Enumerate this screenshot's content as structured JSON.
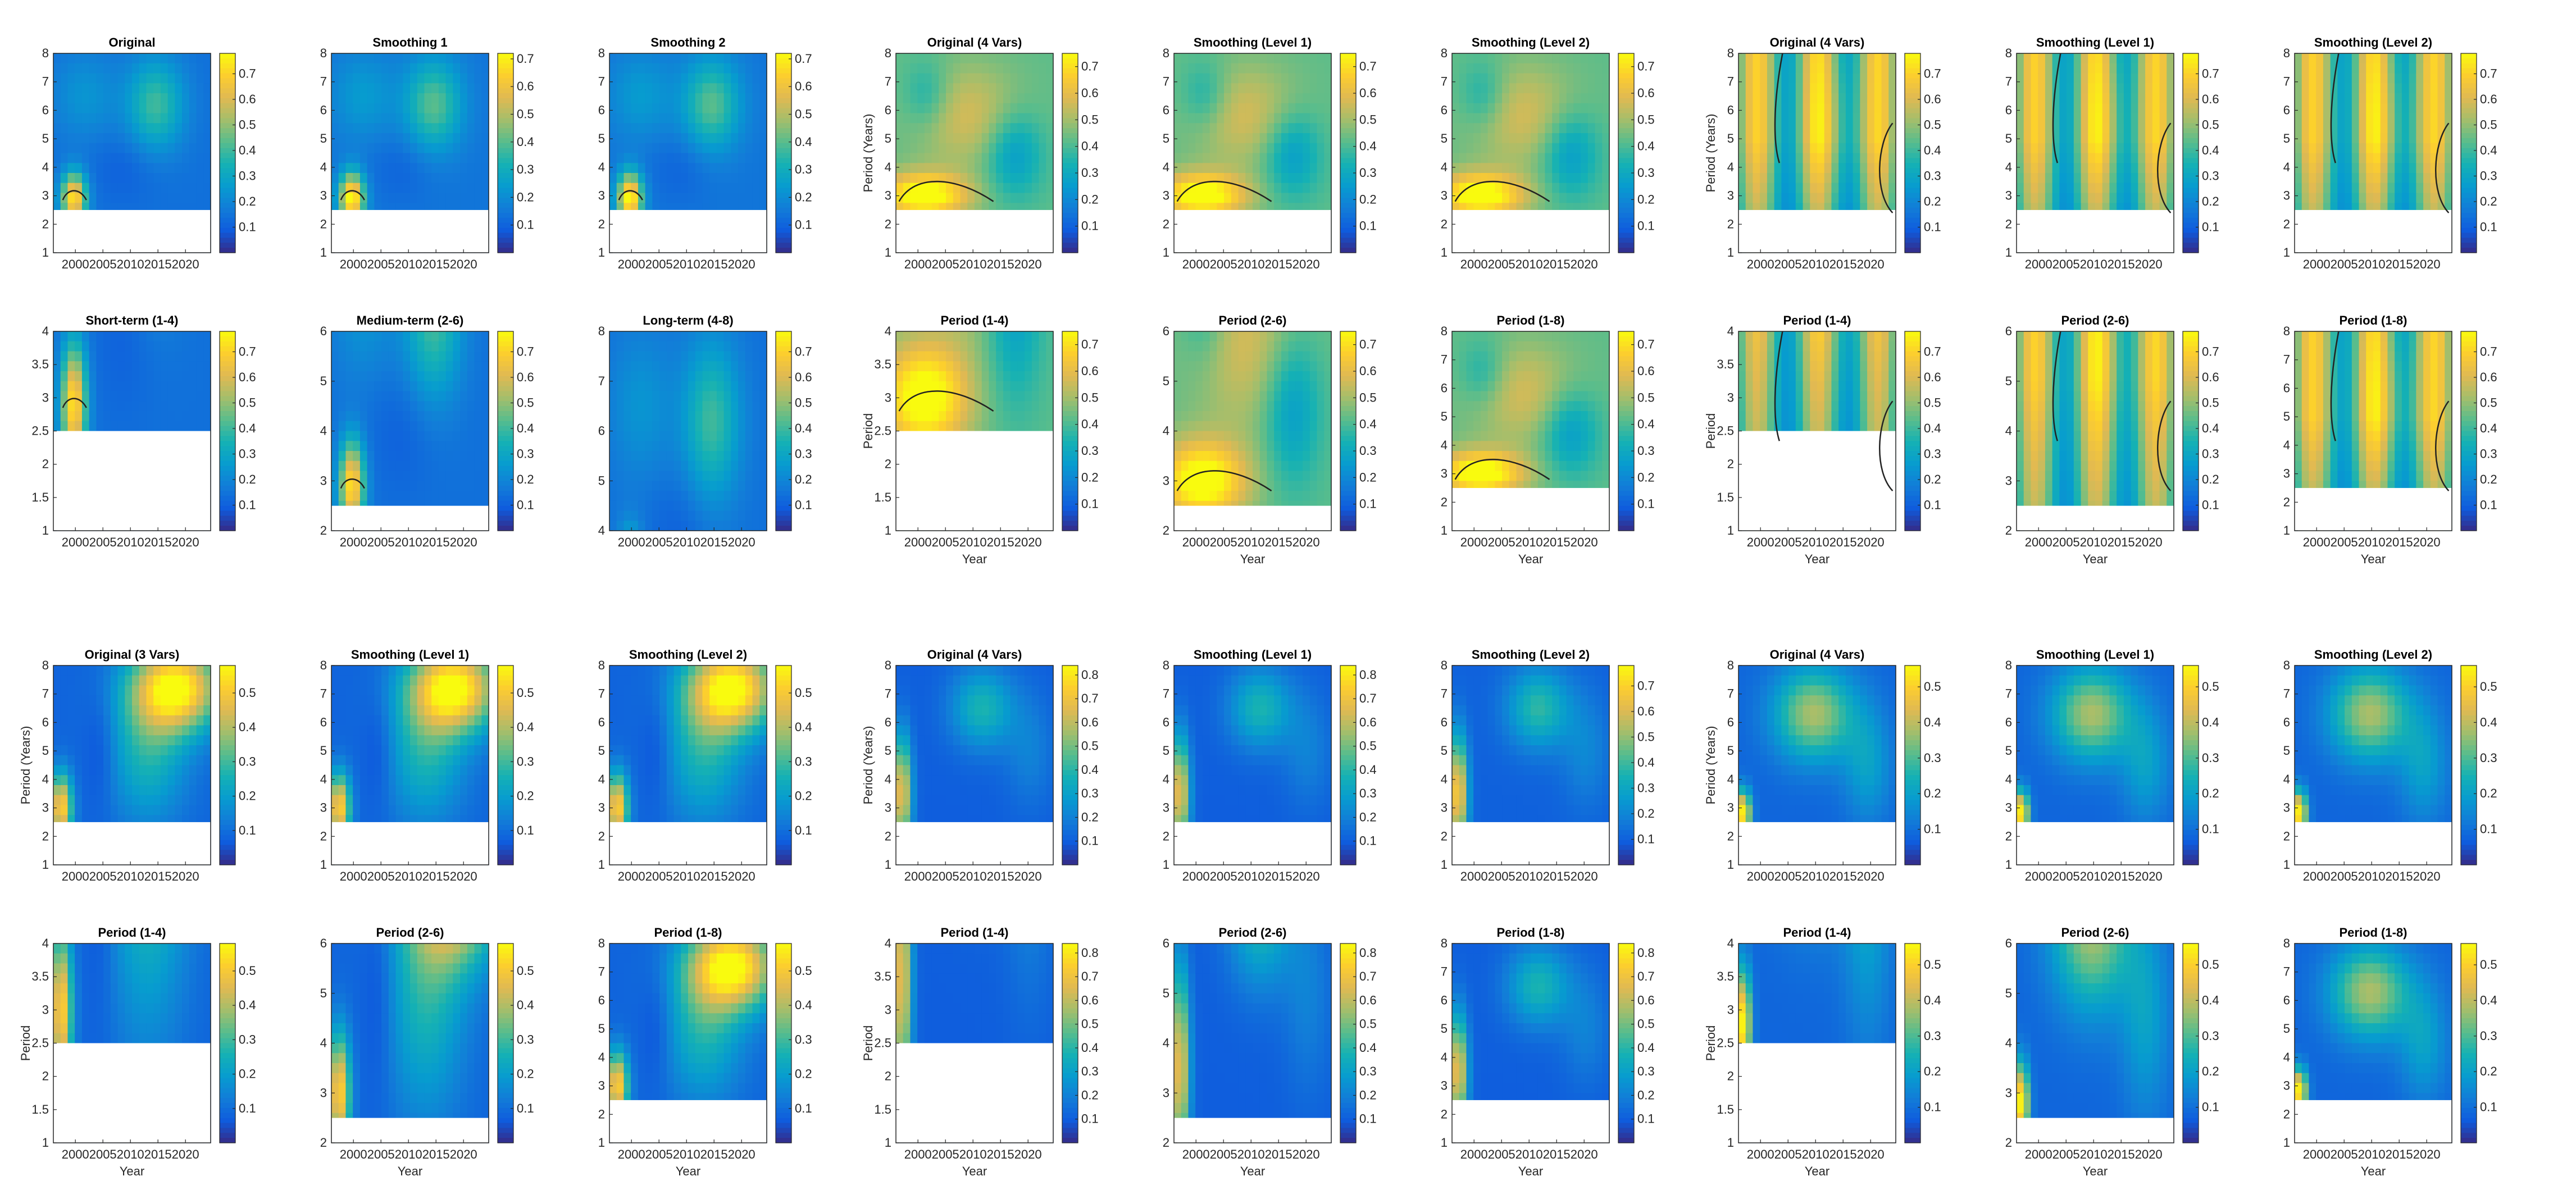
{
  "chart_data": [
    {
      "type": "heatmap",
      "title": "Original",
      "ylabel": "",
      "xlabel": "",
      "ylim": [
        1,
        8
      ],
      "yticks": [
        1,
        2,
        3,
        4,
        5,
        6,
        7,
        8
      ],
      "cbar": [
        0.1,
        0.2,
        0.3,
        0.4,
        0.5,
        0.6,
        0.7
      ],
      "vmax": 0.78,
      "xticks": [
        "2000",
        "2005",
        "2010",
        "2015",
        "2020"
      ],
      "coi": 2.5,
      "pattern": "c"
    },
    {
      "type": "heatmap",
      "title": "Smoothing 1",
      "ylabel": "",
      "xlabel": "",
      "ylim": [
        1,
        8
      ],
      "yticks": [
        1,
        2,
        3,
        4,
        5,
        6,
        7,
        8
      ],
      "cbar": [
        0.1,
        0.2,
        0.3,
        0.4,
        0.5,
        0.6,
        0.7
      ],
      "vmax": 0.72,
      "xticks": [
        "2000",
        "2005",
        "2010",
        "2015",
        "2020"
      ],
      "coi": 2.5,
      "pattern": "c"
    },
    {
      "type": "heatmap",
      "title": "Smoothing 2",
      "ylabel": "",
      "xlabel": "",
      "ylim": [
        1,
        8
      ],
      "yticks": [
        1,
        2,
        3,
        4,
        5,
        6,
        7,
        8
      ],
      "cbar": [
        0.1,
        0.2,
        0.3,
        0.4,
        0.5,
        0.6,
        0.7
      ],
      "vmax": 0.72,
      "xticks": [
        "2000",
        "2005",
        "2010",
        "2015",
        "2020"
      ],
      "coi": 2.5,
      "pattern": "c"
    },
    {
      "type": "heatmap",
      "title": "Original (4 Vars)",
      "ylabel": "Period (Years)",
      "xlabel": "",
      "ylim": [
        1,
        8
      ],
      "yticks": [
        1,
        2,
        3,
        4,
        5,
        6,
        7,
        8
      ],
      "cbar": [
        0.1,
        0.2,
        0.3,
        0.4,
        0.5,
        0.6,
        0.7
      ],
      "vmax": 0.75,
      "xticks": [
        "2000",
        "2005",
        "2010",
        "2015",
        "2020"
      ],
      "coi": 2.5,
      "pattern": "a"
    },
    {
      "type": "heatmap",
      "title": "Smoothing (Level 1)",
      "ylabel": "",
      "xlabel": "",
      "ylim": [
        1,
        8
      ],
      "yticks": [
        1,
        2,
        3,
        4,
        5,
        6,
        7,
        8
      ],
      "cbar": [
        0.1,
        0.2,
        0.3,
        0.4,
        0.5,
        0.6,
        0.7
      ],
      "vmax": 0.75,
      "xticks": [
        "2000",
        "2005",
        "2010",
        "2015",
        "2020"
      ],
      "coi": 2.5,
      "pattern": "a"
    },
    {
      "type": "heatmap",
      "title": "Smoothing (Level 2)",
      "ylabel": "",
      "xlabel": "",
      "ylim": [
        1,
        8
      ],
      "yticks": [
        1,
        2,
        3,
        4,
        5,
        6,
        7,
        8
      ],
      "cbar": [
        0.1,
        0.2,
        0.3,
        0.4,
        0.5,
        0.6,
        0.7
      ],
      "vmax": 0.75,
      "xticks": [
        "2000",
        "2005",
        "2010",
        "2015",
        "2020"
      ],
      "coi": 2.5,
      "pattern": "a"
    },
    {
      "type": "heatmap",
      "title": "Original (4 Vars)",
      "ylabel": "Period (Years)",
      "xlabel": "",
      "ylim": [
        1,
        8
      ],
      "yticks": [
        1,
        2,
        3,
        4,
        5,
        6,
        7,
        8
      ],
      "cbar": [
        0.1,
        0.2,
        0.3,
        0.4,
        0.5,
        0.6,
        0.7
      ],
      "vmax": 0.78,
      "xticks": [
        "2000",
        "2005",
        "2010",
        "2015",
        "2020"
      ],
      "coi": 2.5,
      "pattern": "b"
    },
    {
      "type": "heatmap",
      "title": "Smoothing (Level 1)",
      "ylabel": "",
      "xlabel": "",
      "ylim": [
        1,
        8
      ],
      "yticks": [
        1,
        2,
        3,
        4,
        5,
        6,
        7,
        8
      ],
      "cbar": [
        0.1,
        0.2,
        0.3,
        0.4,
        0.5,
        0.6,
        0.7
      ],
      "vmax": 0.78,
      "xticks": [
        "2000",
        "2005",
        "2010",
        "2015",
        "2020"
      ],
      "coi": 2.5,
      "pattern": "b"
    },
    {
      "type": "heatmap",
      "title": "Smoothing (Level 2)",
      "ylabel": "",
      "xlabel": "",
      "ylim": [
        1,
        8
      ],
      "yticks": [
        1,
        2,
        3,
        4,
        5,
        6,
        7,
        8
      ],
      "cbar": [
        0.1,
        0.2,
        0.3,
        0.4,
        0.5,
        0.6,
        0.7
      ],
      "vmax": 0.78,
      "xticks": [
        "2000",
        "2005",
        "2010",
        "2015",
        "2020"
      ],
      "coi": 2.5,
      "pattern": "b"
    },
    {
      "type": "heatmap",
      "title": "Short-term (1-4)",
      "ylabel": "",
      "xlabel": "",
      "ylim": [
        1,
        4
      ],
      "yticks": [
        1,
        1.5,
        2,
        2.5,
        3,
        3.5,
        4
      ],
      "cbar": [
        0.1,
        0.2,
        0.3,
        0.4,
        0.5,
        0.6,
        0.7
      ],
      "vmax": 0.78,
      "xticks": [
        "2000",
        "2005",
        "2010",
        "2015",
        "2020"
      ],
      "coi": 2.5,
      "pattern": "c"
    },
    {
      "type": "heatmap",
      "title": "Medium-term (2-6)",
      "ylabel": "",
      "xlabel": "",
      "ylim": [
        2,
        6
      ],
      "yticks": [
        2,
        3,
        4,
        5,
        6
      ],
      "cbar": [
        0.1,
        0.2,
        0.3,
        0.4,
        0.5,
        0.6,
        0.7
      ],
      "vmax": 0.78,
      "xticks": [
        "2000",
        "2005",
        "2010",
        "2015",
        "2020"
      ],
      "coi": 2.5,
      "pattern": "c"
    },
    {
      "type": "heatmap",
      "title": "Long-term (4-8)",
      "ylabel": "",
      "xlabel": "",
      "ylim": [
        4,
        8
      ],
      "yticks": [
        4,
        5,
        6,
        7,
        8
      ],
      "cbar": [
        0.1,
        0.2,
        0.3,
        0.4,
        0.5,
        0.6,
        0.7
      ],
      "vmax": 0.78,
      "xticks": [
        "2000",
        "2005",
        "2010",
        "2015",
        "2020"
      ],
      "coi": null,
      "pattern": "c"
    },
    {
      "type": "heatmap",
      "title": "Period (1-4)",
      "ylabel": "Period",
      "xlabel": "Year",
      "ylim": [
        1,
        4
      ],
      "yticks": [
        1,
        1.5,
        2,
        2.5,
        3,
        3.5,
        4
      ],
      "cbar": [
        0.1,
        0.2,
        0.3,
        0.4,
        0.5,
        0.6,
        0.7
      ],
      "vmax": 0.75,
      "xticks": [
        "2000",
        "2005",
        "2010",
        "2015",
        "2020"
      ],
      "coi": 2.5,
      "pattern": "a"
    },
    {
      "type": "heatmap",
      "title": "Period (2-6)",
      "ylabel": "",
      "xlabel": "Year",
      "ylim": [
        2,
        6
      ],
      "yticks": [
        2,
        3,
        4,
        5,
        6
      ],
      "cbar": [
        0.1,
        0.2,
        0.3,
        0.4,
        0.5,
        0.6,
        0.7
      ],
      "vmax": 0.75,
      "xticks": [
        "2000",
        "2005",
        "2010",
        "2015",
        "2020"
      ],
      "coi": 2.5,
      "pattern": "a"
    },
    {
      "type": "heatmap",
      "title": "Period (1-8)",
      "ylabel": "",
      "xlabel": "Year",
      "ylim": [
        1,
        8
      ],
      "yticks": [
        1,
        2,
        3,
        4,
        5,
        6,
        7,
        8
      ],
      "cbar": [
        0.1,
        0.2,
        0.3,
        0.4,
        0.5,
        0.6,
        0.7
      ],
      "vmax": 0.75,
      "xticks": [
        "2000",
        "2005",
        "2010",
        "2015",
        "2020"
      ],
      "coi": 2.5,
      "pattern": "a"
    },
    {
      "type": "heatmap",
      "title": "Period (1-4)",
      "ylabel": "Period",
      "xlabel": "Year",
      "ylim": [
        1,
        4
      ],
      "yticks": [
        1,
        1.5,
        2,
        2.5,
        3,
        3.5,
        4
      ],
      "cbar": [
        0.1,
        0.2,
        0.3,
        0.4,
        0.5,
        0.6,
        0.7
      ],
      "vmax": 0.78,
      "xticks": [
        "2000",
        "2005",
        "2010",
        "2015",
        "2020"
      ],
      "coi": 2.5,
      "pattern": "b"
    },
    {
      "type": "heatmap",
      "title": "Period (2-6)",
      "ylabel": "",
      "xlabel": "Year",
      "ylim": [
        2,
        6
      ],
      "yticks": [
        2,
        3,
        4,
        5,
        6
      ],
      "cbar": [
        0.1,
        0.2,
        0.3,
        0.4,
        0.5,
        0.6,
        0.7
      ],
      "vmax": 0.78,
      "xticks": [
        "2000",
        "2005",
        "2010",
        "2015",
        "2020"
      ],
      "coi": 2.5,
      "pattern": "b"
    },
    {
      "type": "heatmap",
      "title": "Period (1-8)",
      "ylabel": "",
      "xlabel": "Year",
      "ylim": [
        1,
        8
      ],
      "yticks": [
        1,
        2,
        3,
        4,
        5,
        6,
        7,
        8
      ],
      "cbar": [
        0.1,
        0.2,
        0.3,
        0.4,
        0.5,
        0.6,
        0.7
      ],
      "vmax": 0.78,
      "xticks": [
        "2000",
        "2005",
        "2010",
        "2015",
        "2020"
      ],
      "coi": 2.5,
      "pattern": "b"
    },
    {
      "type": "heatmap",
      "title": "Original (3 Vars)",
      "ylabel": "Period (Years)",
      "xlabel": "",
      "ylim": [
        1,
        8
      ],
      "yticks": [
        1,
        2,
        3,
        4,
        5,
        6,
        7,
        8
      ],
      "cbar": [
        0.1,
        0.2,
        0.3,
        0.4,
        0.5
      ],
      "vmax": 0.58,
      "xticks": [
        "2000",
        "2005",
        "2010",
        "2015",
        "2020"
      ],
      "coi": 2.5,
      "pattern": "d"
    },
    {
      "type": "heatmap",
      "title": "Smoothing (Level 1)",
      "ylabel": "",
      "xlabel": "",
      "ylim": [
        1,
        8
      ],
      "yticks": [
        1,
        2,
        3,
        4,
        5,
        6,
        7,
        8
      ],
      "cbar": [
        0.1,
        0.2,
        0.3,
        0.4,
        0.5
      ],
      "vmax": 0.58,
      "xticks": [
        "2000",
        "2005",
        "2010",
        "2015",
        "2020"
      ],
      "coi": 2.5,
      "pattern": "d"
    },
    {
      "type": "heatmap",
      "title": "Smoothing (Level 2)",
      "ylabel": "",
      "xlabel": "",
      "ylim": [
        1,
        8
      ],
      "yticks": [
        1,
        2,
        3,
        4,
        5,
        6,
        7,
        8
      ],
      "cbar": [
        0.1,
        0.2,
        0.3,
        0.4,
        0.5
      ],
      "vmax": 0.58,
      "xticks": [
        "2000",
        "2005",
        "2010",
        "2015",
        "2020"
      ],
      "coi": 2.5,
      "pattern": "d"
    },
    {
      "type": "heatmap",
      "title": "Original (4 Vars)",
      "ylabel": "Period (Years)",
      "xlabel": "",
      "ylim": [
        1,
        8
      ],
      "yticks": [
        1,
        2,
        3,
        4,
        5,
        6,
        7,
        8
      ],
      "cbar": [
        0.1,
        0.2,
        0.3,
        0.4,
        0.5,
        0.6,
        0.7,
        0.8
      ],
      "vmax": 0.84,
      "xticks": [
        "2000",
        "2005",
        "2010",
        "2015",
        "2020"
      ],
      "coi": 2.5,
      "pattern": "e"
    },
    {
      "type": "heatmap",
      "title": "Smoothing (Level 1)",
      "ylabel": "",
      "xlabel": "",
      "ylim": [
        1,
        8
      ],
      "yticks": [
        1,
        2,
        3,
        4,
        5,
        6,
        7,
        8
      ],
      "cbar": [
        0.1,
        0.2,
        0.3,
        0.4,
        0.5,
        0.6,
        0.7,
        0.8
      ],
      "vmax": 0.84,
      "xticks": [
        "2000",
        "2005",
        "2010",
        "2015",
        "2020"
      ],
      "coi": 2.5,
      "pattern": "e"
    },
    {
      "type": "heatmap",
      "title": "Smoothing (Level 2)",
      "ylabel": "",
      "xlabel": "",
      "ylim": [
        1,
        8
      ],
      "yticks": [
        1,
        2,
        3,
        4,
        5,
        6,
        7,
        8
      ],
      "cbar": [
        0.1,
        0.2,
        0.3,
        0.4,
        0.5,
        0.6,
        0.7
      ],
      "vmax": 0.78,
      "xticks": [
        "2000",
        "2005",
        "2010",
        "2015",
        "2020"
      ],
      "coi": 2.5,
      "pattern": "e"
    },
    {
      "type": "heatmap",
      "title": "Original (4 Vars)",
      "ylabel": "Period (Years)",
      "xlabel": "",
      "ylim": [
        1,
        8
      ],
      "yticks": [
        1,
        2,
        3,
        4,
        5,
        6,
        7,
        8
      ],
      "cbar": [
        0.1,
        0.2,
        0.3,
        0.4,
        0.5
      ],
      "vmax": 0.56,
      "xticks": [
        "2000",
        "2005",
        "2010",
        "2015",
        "2020"
      ],
      "coi": 2.5,
      "pattern": "f"
    },
    {
      "type": "heatmap",
      "title": "Smoothing (Level 1)",
      "ylabel": "",
      "xlabel": "",
      "ylim": [
        1,
        8
      ],
      "yticks": [
        1,
        2,
        3,
        4,
        5,
        6,
        7,
        8
      ],
      "cbar": [
        0.1,
        0.2,
        0.3,
        0.4,
        0.5
      ],
      "vmax": 0.56,
      "xticks": [
        "2000",
        "2005",
        "2010",
        "2015",
        "2020"
      ],
      "coi": 2.5,
      "pattern": "f"
    },
    {
      "type": "heatmap",
      "title": "Smoothing (Level 2)",
      "ylabel": "",
      "xlabel": "",
      "ylim": [
        1,
        8
      ],
      "yticks": [
        1,
        2,
        3,
        4,
        5,
        6,
        7,
        8
      ],
      "cbar": [
        0.1,
        0.2,
        0.3,
        0.4,
        0.5
      ],
      "vmax": 0.56,
      "xticks": [
        "2000",
        "2005",
        "2010",
        "2015",
        "2020"
      ],
      "coi": 2.5,
      "pattern": "f"
    },
    {
      "type": "heatmap",
      "title": "Period (1-4)",
      "ylabel": "Period",
      "xlabel": "Year",
      "ylim": [
        1,
        4
      ],
      "yticks": [
        1,
        1.5,
        2,
        2.5,
        3,
        3.5,
        4
      ],
      "cbar": [
        0.1,
        0.2,
        0.3,
        0.4,
        0.5
      ],
      "vmax": 0.58,
      "xticks": [
        "2000",
        "2005",
        "2010",
        "2015",
        "2020"
      ],
      "coi": 2.5,
      "pattern": "d"
    },
    {
      "type": "heatmap",
      "title": "Period (2-6)",
      "ylabel": "",
      "xlabel": "Year",
      "ylim": [
        2,
        6
      ],
      "yticks": [
        2,
        3,
        4,
        5,
        6
      ],
      "cbar": [
        0.1,
        0.2,
        0.3,
        0.4,
        0.5
      ],
      "vmax": 0.58,
      "xticks": [
        "2000",
        "2005",
        "2010",
        "2015",
        "2020"
      ],
      "coi": 2.5,
      "pattern": "d"
    },
    {
      "type": "heatmap",
      "title": "Period (1-8)",
      "ylabel": "",
      "xlabel": "Year",
      "ylim": [
        1,
        8
      ],
      "yticks": [
        1,
        2,
        3,
        4,
        5,
        6,
        7,
        8
      ],
      "cbar": [
        0.1,
        0.2,
        0.3,
        0.4,
        0.5
      ],
      "vmax": 0.58,
      "xticks": [
        "2000",
        "2005",
        "2010",
        "2015",
        "2020"
      ],
      "coi": 2.5,
      "pattern": "d"
    },
    {
      "type": "heatmap",
      "title": "Period (1-4)",
      "ylabel": "Period",
      "xlabel": "Year",
      "ylim": [
        1,
        4
      ],
      "yticks": [
        1,
        1.5,
        2,
        2.5,
        3,
        3.5,
        4
      ],
      "cbar": [
        0.1,
        0.2,
        0.3,
        0.4,
        0.5,
        0.6,
        0.7,
        0.8
      ],
      "vmax": 0.84,
      "xticks": [
        "2000",
        "2005",
        "2010",
        "2015",
        "2020"
      ],
      "coi": 2.5,
      "pattern": "e"
    },
    {
      "type": "heatmap",
      "title": "Period (2-6)",
      "ylabel": "",
      "xlabel": "Year",
      "ylim": [
        2,
        6
      ],
      "yticks": [
        2,
        3,
        4,
        5,
        6
      ],
      "cbar": [
        0.1,
        0.2,
        0.3,
        0.4,
        0.5,
        0.6,
        0.7,
        0.8
      ],
      "vmax": 0.84,
      "xticks": [
        "2000",
        "2005",
        "2010",
        "2015",
        "2020"
      ],
      "coi": 2.5,
      "pattern": "e"
    },
    {
      "type": "heatmap",
      "title": "Period (1-8)",
      "ylabel": "",
      "xlabel": "Year",
      "ylim": [
        1,
        8
      ],
      "yticks": [
        1,
        2,
        3,
        4,
        5,
        6,
        7,
        8
      ],
      "cbar": [
        0.1,
        0.2,
        0.3,
        0.4,
        0.5,
        0.6,
        0.7,
        0.8
      ],
      "vmax": 0.84,
      "xticks": [
        "2000",
        "2005",
        "2010",
        "2015",
        "2020"
      ],
      "coi": 2.5,
      "pattern": "e"
    },
    {
      "type": "heatmap",
      "title": "Period (1-4)",
      "ylabel": "Period",
      "xlabel": "Year",
      "ylim": [
        1,
        4
      ],
      "yticks": [
        1,
        1.5,
        2,
        2.5,
        3,
        3.5,
        4
      ],
      "cbar": [
        0.1,
        0.2,
        0.3,
        0.4,
        0.5
      ],
      "vmax": 0.56,
      "xticks": [
        "2000",
        "2005",
        "2010",
        "2015",
        "2020"
      ],
      "coi": 2.5,
      "pattern": "f"
    },
    {
      "type": "heatmap",
      "title": "Period (2-6)",
      "ylabel": "",
      "xlabel": "Year",
      "ylim": [
        2,
        6
      ],
      "yticks": [
        2,
        3,
        4,
        5,
        6
      ],
      "cbar": [
        0.1,
        0.2,
        0.3,
        0.4,
        0.5
      ],
      "vmax": 0.56,
      "xticks": [
        "2000",
        "2005",
        "2010",
        "2015",
        "2020"
      ],
      "coi": 2.5,
      "pattern": "f"
    },
    {
      "type": "heatmap",
      "title": "Period (1-8)",
      "ylabel": "",
      "xlabel": "Year",
      "ylim": [
        1,
        8
      ],
      "yticks": [
        1,
        2,
        3,
        4,
        5,
        6,
        7,
        8
      ],
      "cbar": [
        0.1,
        0.2,
        0.3,
        0.4,
        0.5
      ],
      "vmax": 0.56,
      "xticks": [
        "2000",
        "2005",
        "2010",
        "2015",
        "2020"
      ],
      "coi": 2.5,
      "pattern": "f"
    }
  ]
}
